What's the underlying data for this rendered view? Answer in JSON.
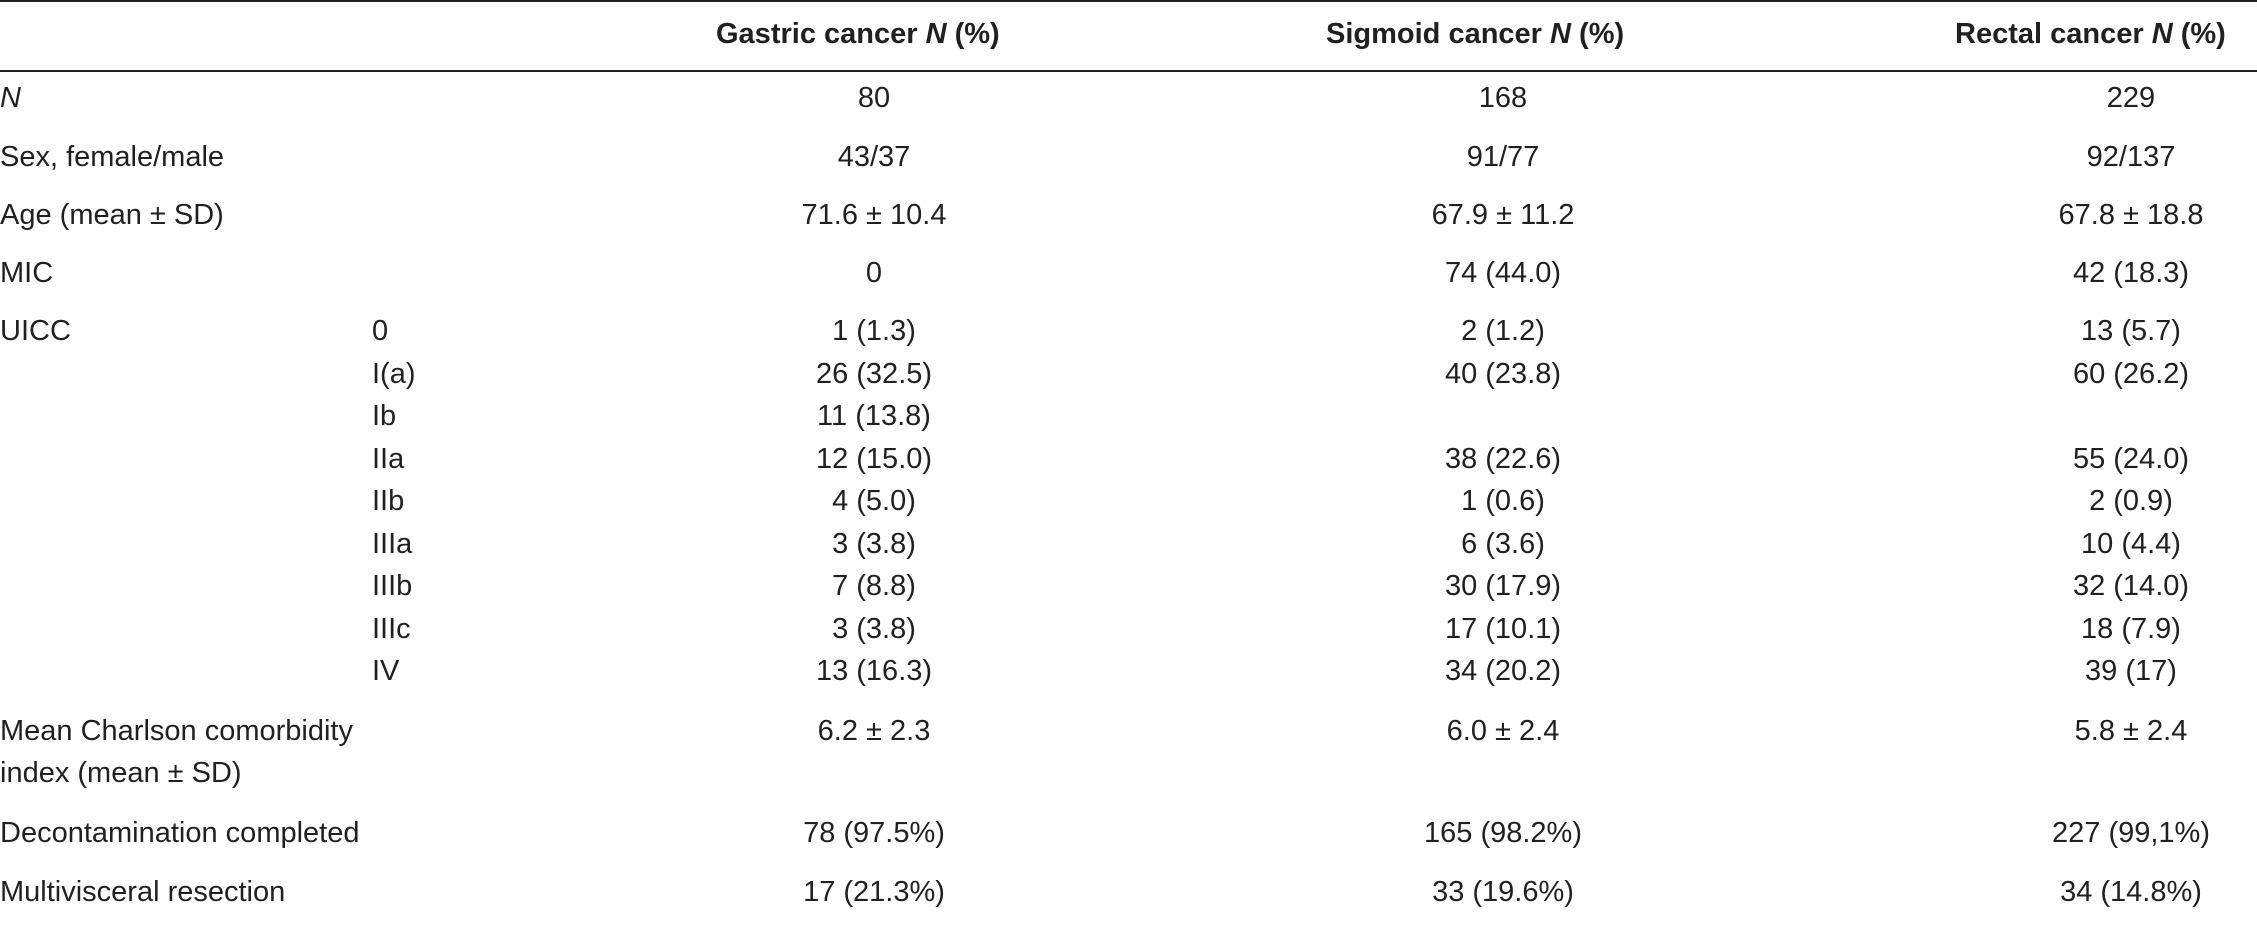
{
  "header": {
    "col_gastric": "Gastric cancer",
    "col_sigmoid": "Sigmoid cancer",
    "col_rectal": "Rectal cancer",
    "n_symbol": "N",
    "pct": "(%)"
  },
  "rows": [
    {
      "label": "N",
      "sub": "",
      "gastric": "80",
      "sigmoid": "168",
      "rectal": "229"
    },
    {
      "label": "Sex, female/male",
      "sub": "",
      "gastric": "43/37",
      "sigmoid": "91/77",
      "rectal": "92/137"
    },
    {
      "label": "Age (mean ± SD)",
      "sub": "",
      "gastric": "71.6 ± 10.4",
      "sigmoid": "67.9 ± 11.2",
      "rectal": "67.8 ± 18.8"
    },
    {
      "label": "MIC",
      "sub": "",
      "gastric": "0",
      "sigmoid": "74 (44.0)",
      "rectal": "42 (18.3)"
    },
    {
      "label": "UICC",
      "sub": "0",
      "gastric": "1 (1.3)",
      "sigmoid": "2 (1.2)",
      "rectal": "13 (5.7)"
    },
    {
      "label": "",
      "sub": "I(a)",
      "gastric": "26 (32.5)",
      "sigmoid": "40 (23.8)",
      "rectal": "60 (26.2)"
    },
    {
      "label": "",
      "sub": "Ib",
      "gastric": "11 (13.8)",
      "sigmoid": "",
      "rectal": ""
    },
    {
      "label": "",
      "sub": "IIa",
      "gastric": "12 (15.0)",
      "sigmoid": "38 (22.6)",
      "rectal": "55 (24.0)"
    },
    {
      "label": "",
      "sub": "IIb",
      "gastric": "4 (5.0)",
      "sigmoid": "1 (0.6)",
      "rectal": "2 (0.9)"
    },
    {
      "label": "",
      "sub": "IIIa",
      "gastric": "3 (3.8)",
      "sigmoid": "6 (3.6)",
      "rectal": "10 (4.4)"
    },
    {
      "label": "",
      "sub": "IIIb",
      "gastric": "7 (8.8)",
      "sigmoid": "30 (17.9)",
      "rectal": "32 (14.0)"
    },
    {
      "label": "",
      "sub": "IIIc",
      "gastric": "3 (3.8)",
      "sigmoid": "17 (10.1)",
      "rectal": "18 (7.9)"
    },
    {
      "label": "",
      "sub": "IV",
      "gastric": "13 (16.3)",
      "sigmoid": "34 (20.2)",
      "rectal": "39 (17)"
    },
    {
      "label": "Mean Charlson comorbidity",
      "label2": "index (mean ± SD)",
      "sub": "",
      "gastric": "6.2 ± 2.3",
      "sigmoid": "6.0 ± 2.4",
      "rectal": "5.8 ± 2.4"
    },
    {
      "label": "Decontamination completed",
      "sub": "",
      "gastric": "78 (97.5%)",
      "sigmoid": "165 (98.2%)",
      "rectal": "227 (99,1%)"
    },
    {
      "label": "Multivisceral resection",
      "sub": "",
      "gastric": "17 (21.3%)",
      "sigmoid": "33 (19.6%)",
      "rectal": "34 (14.8%)"
    }
  ]
}
